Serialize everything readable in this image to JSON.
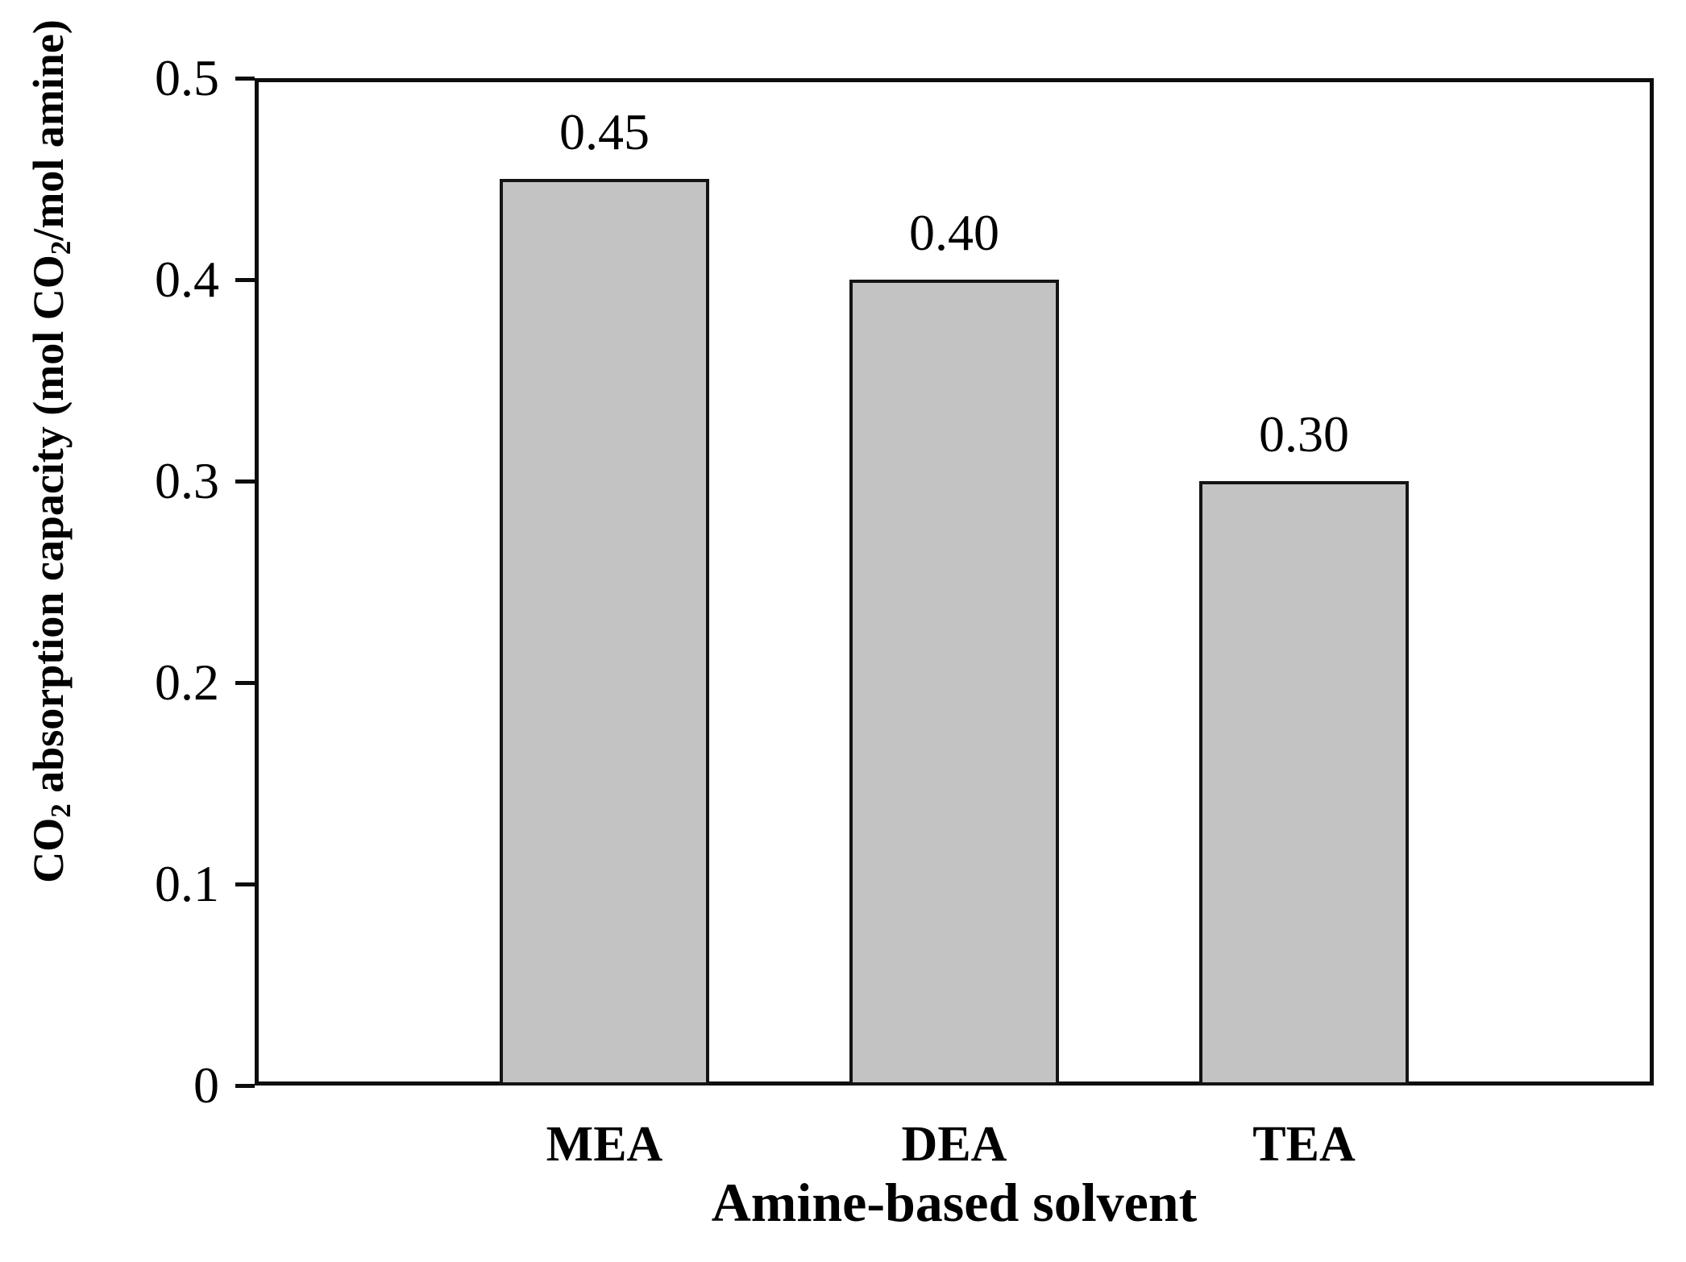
{
  "figure": {
    "background_color": "#ffffff",
    "text_color": "#000000"
  },
  "chart_data": {
    "type": "bar",
    "title": "",
    "categories": [
      "MEA",
      "DEA",
      "TEA"
    ],
    "values": [
      0.45,
      0.4,
      0.3
    ],
    "bar_value_labels": [
      "0.45",
      "0.40",
      "0.30"
    ],
    "xlabel": "Amine-based solvent",
    "ylabel": "CO2 absorption capacity (mol CO2/mol amine)",
    "ylabel_segments": [
      {
        "t": "CO"
      },
      {
        "t": "2",
        "sub": true
      },
      {
        "t": " absorption capacity (mol CO"
      },
      {
        "t": "2",
        "sub": true
      },
      {
        "t": "/mol amine)"
      }
    ],
    "ylim": [
      0,
      0.5
    ],
    "ytick_labels": [
      "0.5",
      "0.4",
      "0.3",
      "0.2",
      "0.1",
      "0"
    ],
    "ytick_values": [
      0.5,
      0.4,
      0.3,
      0.2,
      0.1,
      0
    ],
    "xtick_marks": false,
    "grid": false,
    "legend": "none",
    "bar_fill_color": "#c3c3c3",
    "bar_border_color": "#141414",
    "axis_color": "#0d0d0d"
  }
}
